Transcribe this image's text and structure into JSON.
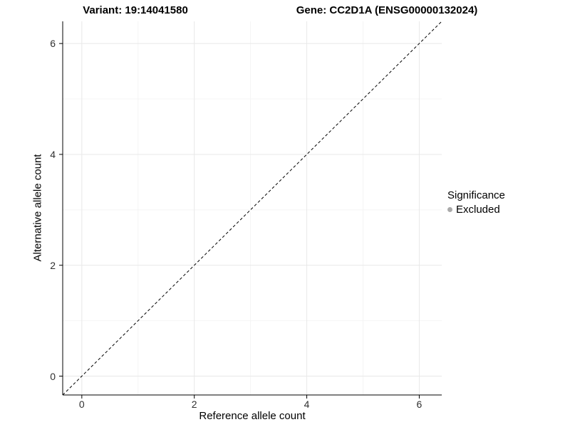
{
  "chart_data": {
    "type": "scatter",
    "title_left": "Variant: 19:14041580",
    "title_right": "Gene: CC2D1A (ENSG00000132024)",
    "xlabel": "Reference allele count",
    "ylabel": "Alternative allele count",
    "xlim": [
      -0.34,
      6.4
    ],
    "ylim": [
      -0.34,
      6.4
    ],
    "xticks": [
      0,
      2,
      4,
      6
    ],
    "yticks": [
      0,
      2,
      4,
      6
    ],
    "xticks_minor": [
      1,
      3,
      5
    ],
    "yticks_minor": [
      1,
      3,
      5
    ],
    "points": [],
    "identity_line": {
      "style": "dashed",
      "color": "#000000",
      "from": [
        -0.34,
        -0.34
      ],
      "to": [
        6.4,
        6.4
      ]
    },
    "grid": {
      "visible": true,
      "major_color": "#e8e8e8",
      "minor_color": "#f4f4f4"
    },
    "axis_color": "#000000",
    "legend": {
      "title": "Significance",
      "position": "right",
      "entries": [
        {
          "label": "Excluded",
          "color": "#aaaaaa",
          "marker": "circle"
        }
      ]
    }
  }
}
